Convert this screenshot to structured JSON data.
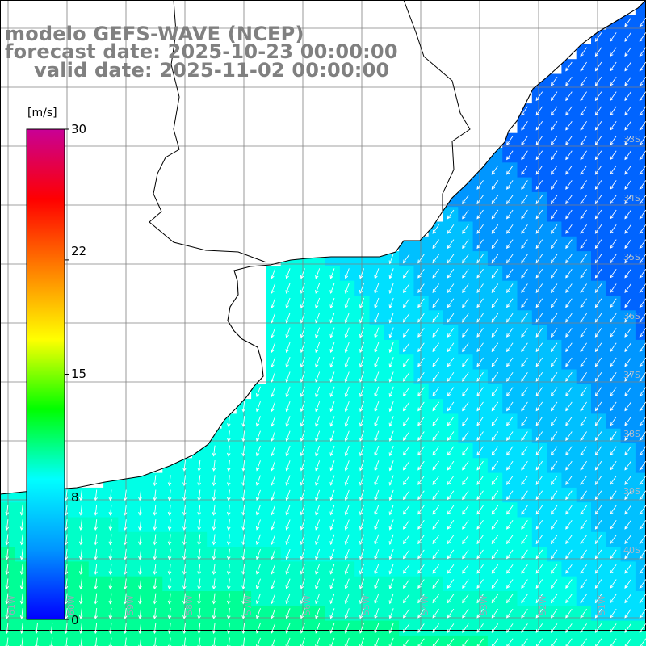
{
  "title": {
    "line1": "modelo GEFS-WAVE (NCEP)",
    "line2": "forecast date: 2025-10-23 00:00:00",
    "line3": "valid date: 2025-11-02 00:00:00"
  },
  "colorbar": {
    "unit": "[m/s]",
    "ticks": [
      {
        "label": "30",
        "value": 30
      },
      {
        "label": "22",
        "value": 22
      },
      {
        "label": "15",
        "value": 15
      },
      {
        "label": "8",
        "value": 8
      },
      {
        "label": "0",
        "value": 0
      }
    ],
    "colors": [
      "#0000ff",
      "#0096ff",
      "#00ffff",
      "#00ff00",
      "#ffff00",
      "#ff8000",
      "#ff0000",
      "#c80096"
    ]
  },
  "lat_labels": [
    "33S",
    "34S",
    "35S",
    "36S",
    "37S",
    "38S",
    "39S",
    "40S"
  ],
  "lon_labels": [
    "61W",
    "60W",
    "59W",
    "58W",
    "57W",
    "56W",
    "55W",
    "54W",
    "53W",
    "52W",
    "51W"
  ],
  "colors": {
    "land": "#ffffff",
    "coast": "#000000",
    "grid": "#808080",
    "arrow": "#ffffff",
    "title": "#808080"
  }
}
